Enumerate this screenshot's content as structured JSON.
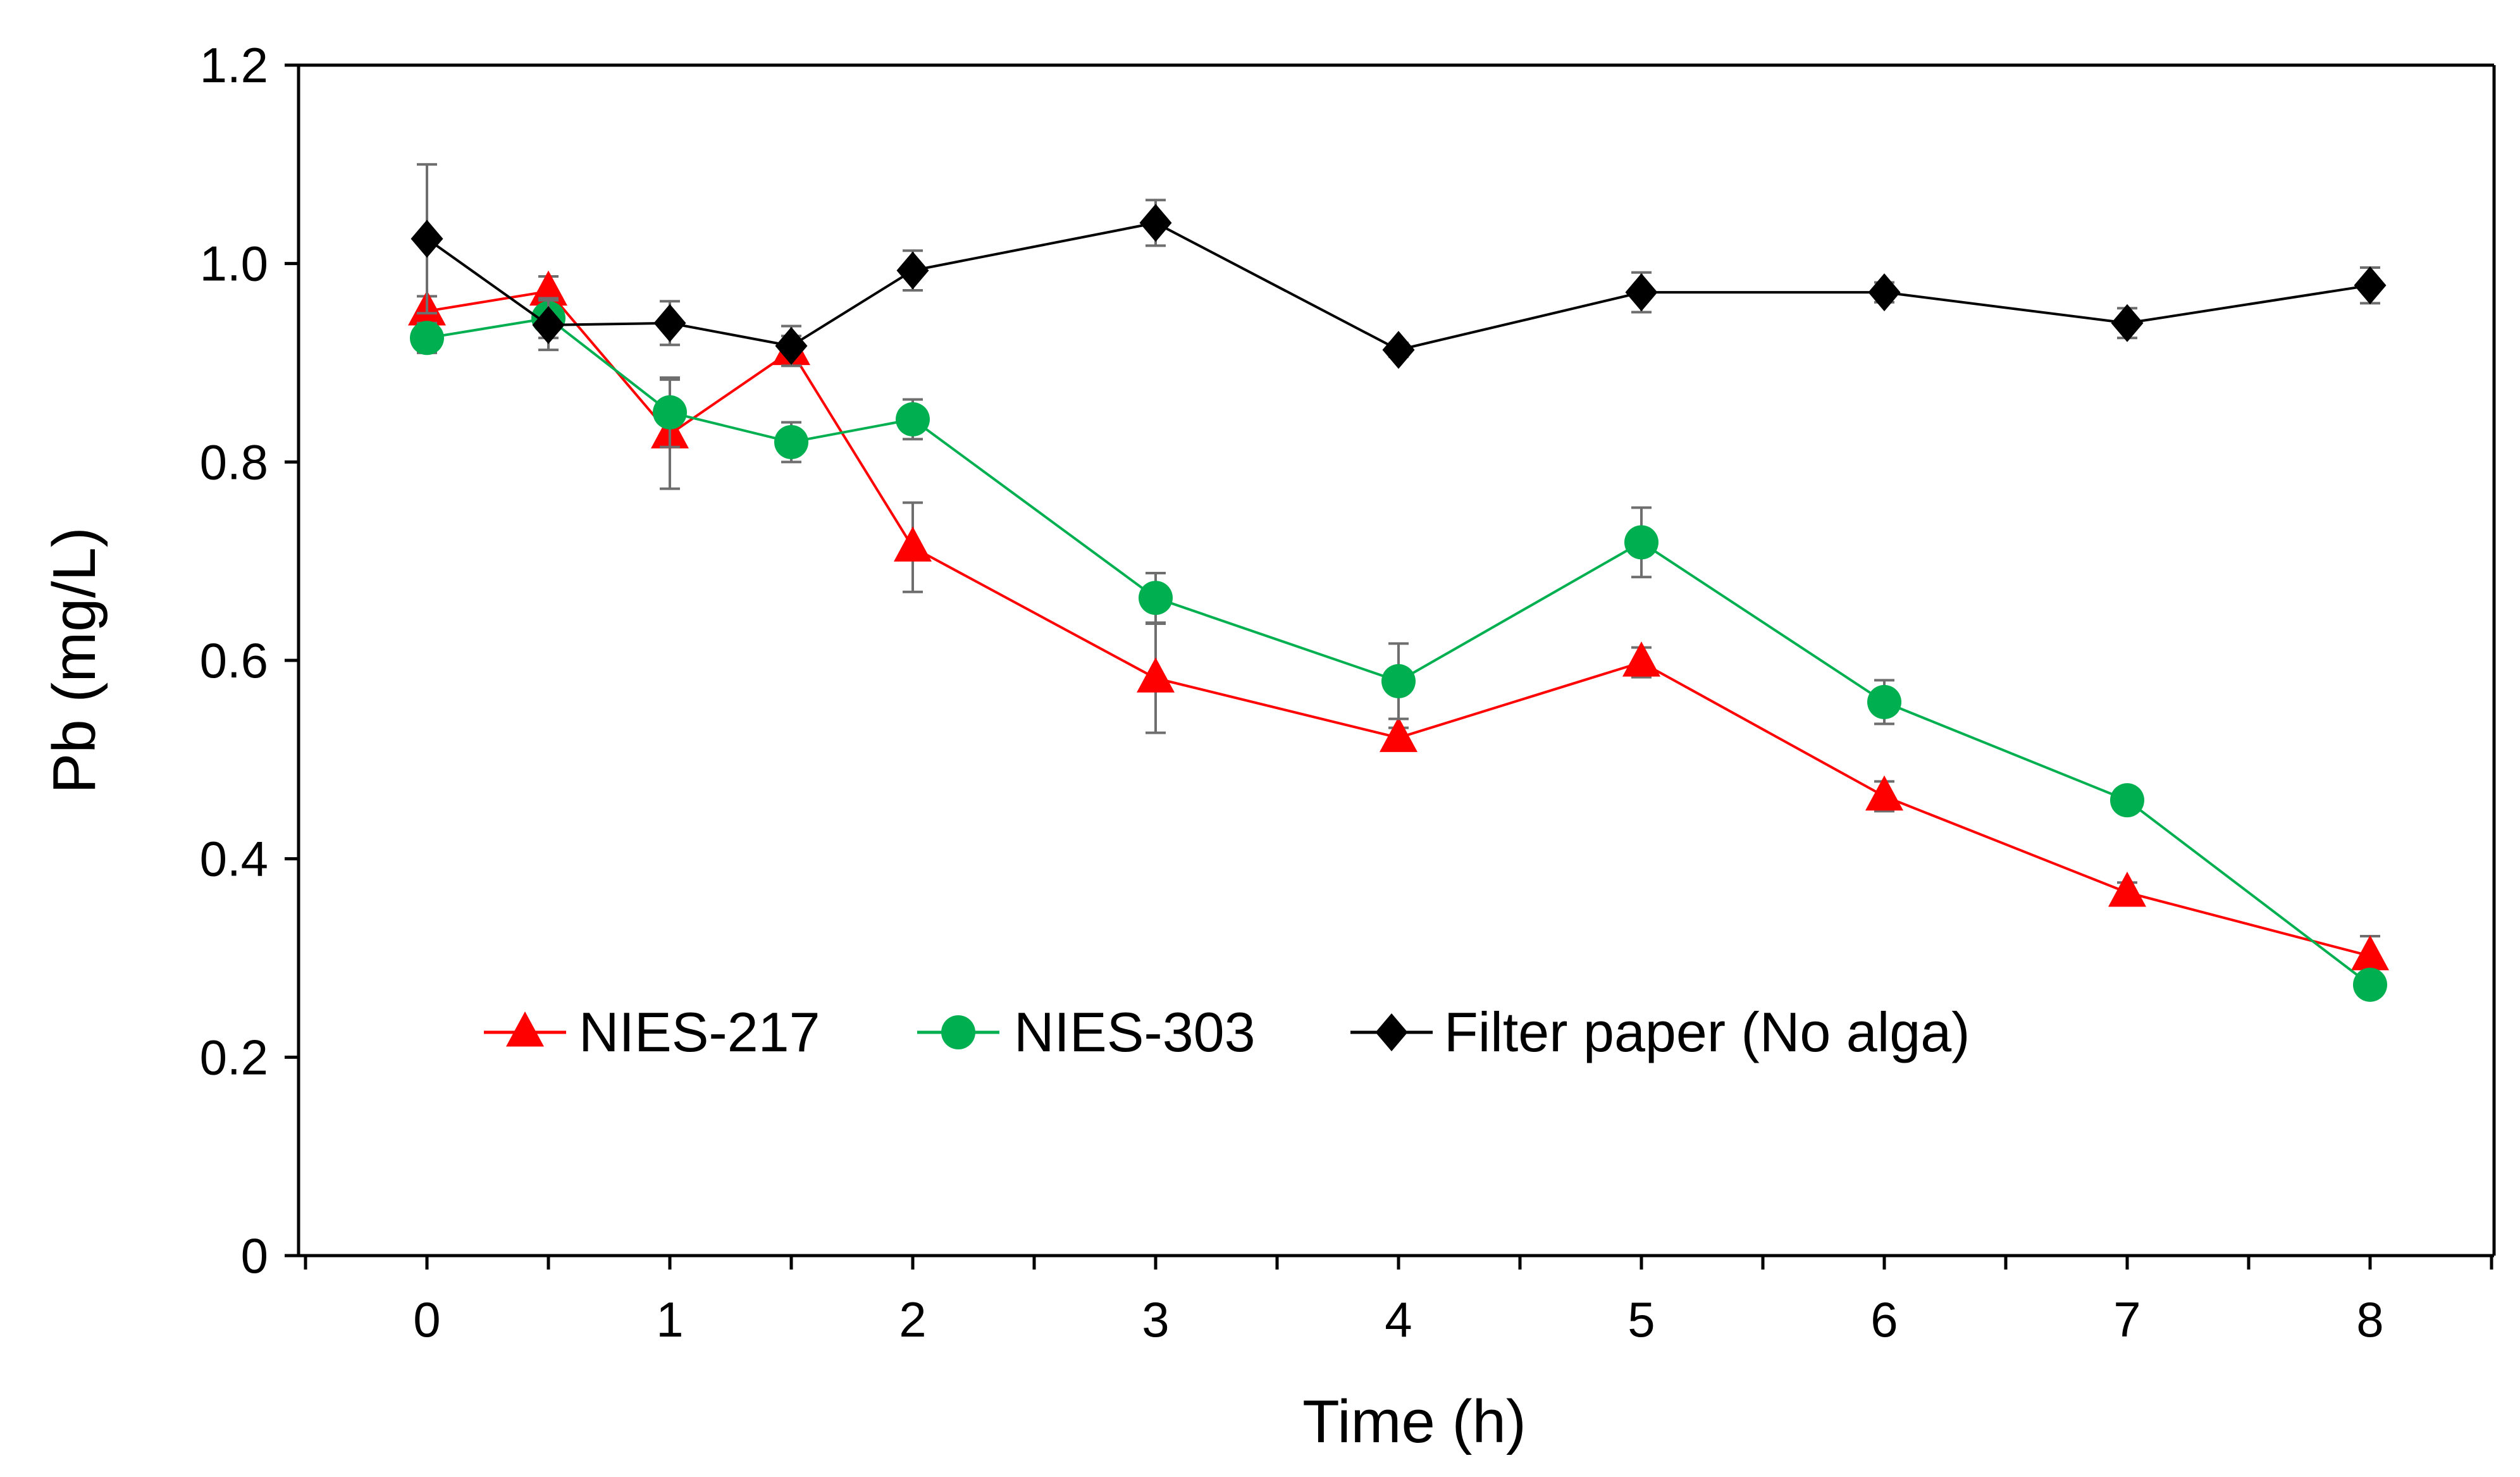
{
  "chart_data": {
    "type": "line",
    "title": "",
    "xlabel": "Time (h)",
    "ylabel": "Pb (mg/L)",
    "xlim": [
      -0.5,
      8.5
    ],
    "ylim": [
      0,
      1.2
    ],
    "xticks": [
      "0",
      "1",
      "2",
      "3",
      "4",
      "5",
      "6",
      "7",
      "8"
    ],
    "xtick_values": [
      0,
      1,
      2,
      3,
      4,
      5,
      6,
      7,
      8
    ],
    "yticks": [
      "0",
      "0.2",
      "0.4",
      "0.6",
      "0.8",
      "1.0",
      "1.2"
    ],
    "ytick_values": [
      0,
      0.2,
      0.4,
      0.6,
      0.8,
      1.0,
      1.2
    ],
    "legend_position": "bottom-center",
    "grid": false,
    "x": [
      0,
      0.5,
      1,
      1.5,
      2,
      3,
      4,
      5,
      6,
      7,
      8
    ],
    "series": [
      {
        "name": "NIES-217",
        "marker": "triangle",
        "color": "#ff0000",
        "values": [
          0.952,
          0.972,
          0.828,
          0.912,
          0.714,
          0.582,
          0.522,
          0.598,
          0.463,
          0.366,
          0.302
        ],
        "errors": [
          0.015,
          0.015,
          0.055,
          0.015,
          0.045,
          0.055,
          0.01,
          0.015,
          0.015,
          0.01,
          0.02
        ]
      },
      {
        "name": "NIES-303",
        "marker": "circle",
        "color": "#00b050",
        "values": [
          0.925,
          0.945,
          0.85,
          0.82,
          0.843,
          0.663,
          0.579,
          0.719,
          0.558,
          0.459,
          0.273
        ],
        "errors": [
          0.015,
          0.02,
          0.035,
          0.02,
          0.02,
          0.025,
          0.038,
          0.035,
          0.022,
          0.01,
          0.008
        ]
      },
      {
        "name": "Filter paper (No alga)",
        "marker": "diamond",
        "color": "#000000",
        "values": [
          1.025,
          0.938,
          0.94,
          0.917,
          0.993,
          1.041,
          0.913,
          0.971,
          0.971,
          0.94,
          0.978
        ],
        "errors": [
          0.075,
          0.025,
          0.022,
          0.02,
          0.02,
          0.023,
          0.007,
          0.02,
          0.01,
          0.015,
          0.018
        ]
      }
    ]
  }
}
